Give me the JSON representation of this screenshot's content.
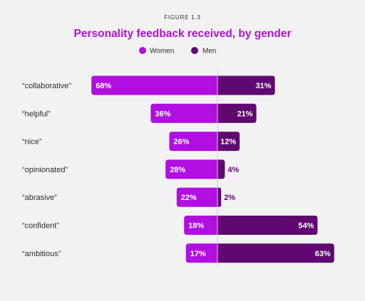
{
  "figure_label": "FIGURE 1.3",
  "chart_data": {
    "type": "bar",
    "title": "Personality feedback received, by gender",
    "categories": [
      "“collaborative”",
      "“helpful”",
      "“nice”",
      "“opinionated”",
      "“abrasive”",
      "“confident”",
      "“ambitious”"
    ],
    "series": [
      {
        "name": "Women",
        "values": [
          68,
          36,
          26,
          28,
          22,
          18,
          17
        ],
        "labels": [
          "68%",
          "36%",
          "26%",
          "28%",
          "22%",
          "18%",
          "17%"
        ],
        "color": "#b00fe0"
      },
      {
        "name": "Men",
        "values": [
          31,
          21,
          12,
          4,
          2,
          54,
          63
        ],
        "labels": [
          "31%",
          "21%",
          "12%",
          "4%",
          "2%",
          "54%",
          "63%"
        ],
        "color": "#5f086f"
      }
    ],
    "legend_position": "top-center",
    "layout": "diverging"
  },
  "colors": {
    "background": "#f2f2f2",
    "title": "#b00fe0",
    "women": "#b00fe0",
    "men": "#5f086f",
    "text": "#2b2b2b"
  }
}
